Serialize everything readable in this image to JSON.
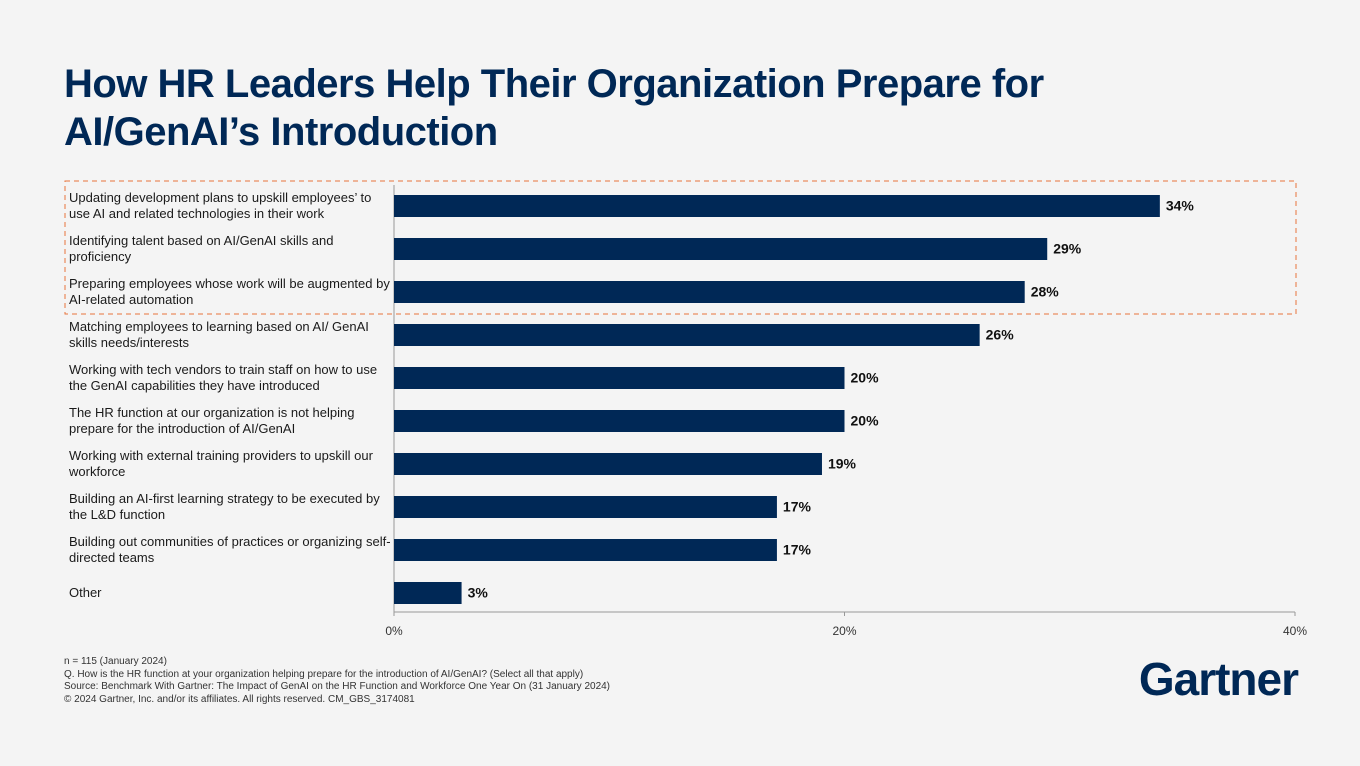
{
  "chart_data": {
    "type": "bar",
    "orientation": "horizontal",
    "title": "How HR Leaders Help Their Organization Prepare for AI/GenAI’s Introduction",
    "categories": [
      "Updating development plans to upskill employees’ to use AI and related technologies in their work",
      "Identifying talent based on AI/GenAI skills and proficiency",
      "Preparing employees whose work will be augmented by AI-related automation",
      "Matching employees to learning based on AI/ GenAI skills needs/interests",
      "Working with tech vendors to train staff on how to use the GenAI capabilities they have introduced",
      "The HR function at our organization is not helping prepare for the introduction of AI/GenAI",
      "Working with external training providers to upskill our workforce",
      "Building an AI-first learning strategy to be executed by the L&D function",
      "Building out communities of practices or organizing self-directed teams",
      "Other"
    ],
    "values": [
      34,
      29,
      28,
      26,
      20,
      20,
      19,
      17,
      17,
      3
    ],
    "value_labels": [
      "34%",
      "29%",
      "28%",
      "26%",
      "20%",
      "20%",
      "19%",
      "17%",
      "17%",
      "3%"
    ],
    "color": "#002856",
    "xlim": [
      0,
      40
    ],
    "xticks": [
      {
        "value": 0,
        "label": "0%"
      },
      {
        "value": 20,
        "label": "20%"
      },
      {
        "value": 40,
        "label": "40%"
      }
    ],
    "grid": false,
    "notes": [
      "n = 115 (January 2024)",
      "Q. How is the HR function at your organization helping prepare for the introduction of AI/GenAI? (Select all that apply)",
      "Source: Benchmark With Gartner: The Impact of GenAI on the HR Function and Workforce One Year On (31 January 2024)",
      "© 2024 Gartner, Inc. and/or its affiliates. All rights reserved. CM_GBS_3174081"
    ],
    "logo": "Gartner"
  }
}
